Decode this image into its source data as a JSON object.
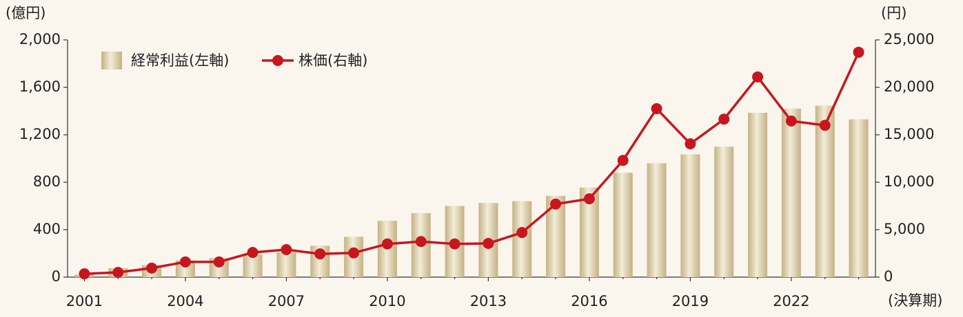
{
  "chart_data": {
    "type": "bar_line",
    "y_unit": "(億円)",
    "y2_unit": "(円)",
    "x_unit": "(決算期)",
    "categories": [
      "2001",
      null,
      null,
      "2004",
      null,
      null,
      "2007",
      null,
      null,
      "2010",
      null,
      null,
      "2013",
      null,
      null,
      "2016",
      null,
      null,
      "2019",
      null,
      null,
      "2022",
      null,
      null
    ],
    "series": [
      {
        "name": "経常利益(左軸)",
        "type": "bar",
        "color": "#c4b185",
        "values": [
          20,
          75,
          100,
          140,
          160,
          190,
          210,
          265,
          340,
          475,
          540,
          600,
          625,
          640,
          685,
          755,
          880,
          960,
          1035,
          1100,
          1385,
          1420,
          1445,
          1330
        ]
      },
      {
        "name": "株価(右軸)",
        "type": "line",
        "axis": "y2",
        "color": "#c8161e",
        "values": [
          350,
          500,
          950,
          1600,
          1600,
          2600,
          2900,
          2450,
          2550,
          3500,
          3750,
          3500,
          3550,
          4700,
          7700,
          8250,
          12300,
          17750,
          14050,
          16650,
          21100,
          16450,
          16000,
          23700
        ]
      }
    ],
    "ylim": [
      0,
      2000
    ],
    "yticks": [
      0,
      400,
      800,
      {
        "value": 1200,
        "label": "1,200"
      },
      {
        "value": 1600,
        "label": "1,600"
      },
      {
        "value": 2000,
        "label": "2,000"
      }
    ],
    "y2lim": [
      0,
      25000
    ],
    "y2ticks": [
      0,
      {
        "value": 5000,
        "label": "5,000"
      },
      {
        "value": 10000,
        "label": "10,000"
      },
      {
        "value": 15000,
        "label": "15,000"
      },
      {
        "value": 20000,
        "label": "20,000"
      },
      {
        "value": 25000,
        "label": "25,000"
      }
    ]
  }
}
